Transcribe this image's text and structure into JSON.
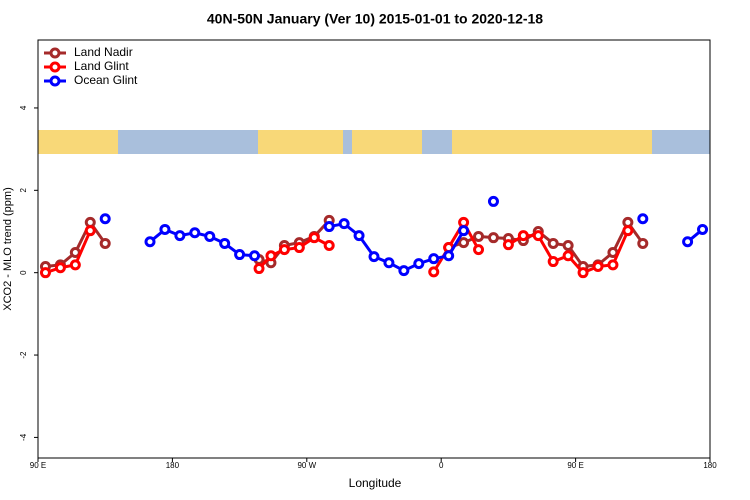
{
  "chart_data": {
    "type": "line",
    "title": "40N-50N January (Ver 10)   2015-01-01 to 2020-12-18",
    "x_label": "Longitude",
    "y_label": "XCO2 - MLO trend (ppm)",
    "xlim": [
      90,
      540
    ],
    "ylim": [
      -4.5,
      5.65
    ],
    "xticks": [
      {
        "value": 90,
        "label": "90 E"
      },
      180,
      {
        "value": 270,
        "label": "90 W"
      },
      {
        "value": 360,
        "label": "0"
      },
      {
        "value": 450,
        "label": "90 E"
      },
      {
        "value": 540,
        "label": "180"
      }
    ],
    "yticks": [
      -4,
      -2,
      0,
      2,
      4
    ],
    "legend": "top-left",
    "series": [
      {
        "name": "Land Nadir",
        "color": "#a52a2a",
        "x": [
          95,
          105,
          115,
          125,
          135,
          145,
          238,
          246,
          255,
          265,
          275,
          285,
          325,
          365,
          375,
          385,
          395,
          405,
          415,
          425,
          435,
          445,
          455,
          465,
          475,
          485,
          495
        ],
        "values": [
          0.15,
          0.19,
          0.49,
          1.22,
          0.71,
          null,
          0.32,
          0.24,
          0.66,
          0.73,
          0.88,
          1.27,
          null,
          0.61,
          0.73,
          0.88,
          0.85,
          0.83,
          0.78,
          1.0,
          0.71,
          0.66,
          0.15,
          0.19,
          0.49,
          1.22,
          0.71
        ]
      },
      {
        "name": "Land Glint",
        "color": "#ff0000",
        "x": [
          95,
          105,
          115,
          125,
          180,
          238,
          246,
          255,
          265,
          275,
          285,
          320,
          355,
          365,
          375,
          385,
          395,
          405,
          415,
          425,
          435,
          445,
          455,
          465,
          475,
          485
        ],
        "values": [
          0.0,
          0.12,
          0.19,
          1.02,
          null,
          0.1,
          0.41,
          0.56,
          0.61,
          0.85,
          0.66,
          null,
          0.02,
          0.61,
          1.22,
          0.56,
          null,
          0.68,
          0.9,
          0.9,
          0.27,
          0.41,
          0.0,
          0.15,
          0.19,
          1.02
        ]
      },
      {
        "name": "Ocean Glint",
        "color": "#0000ff",
        "x": [
          135,
          145,
          165,
          175,
          185,
          195,
          205,
          215,
          225,
          235,
          245,
          285,
          295,
          305,
          315,
          325,
          335,
          345,
          355,
          365,
          375,
          385,
          395,
          405,
          495,
          505,
          525,
          535
        ],
        "values": [
          1.31,
          null,
          0.75,
          1.05,
          0.9,
          0.97,
          0.88,
          0.71,
          0.44,
          0.41,
          null,
          1.12,
          1.19,
          0.9,
          0.39,
          0.24,
          0.05,
          0.22,
          0.34,
          0.41,
          1.02,
          null,
          1.73,
          null,
          1.31,
          null,
          0.75,
          1.05
        ]
      }
    ]
  }
}
